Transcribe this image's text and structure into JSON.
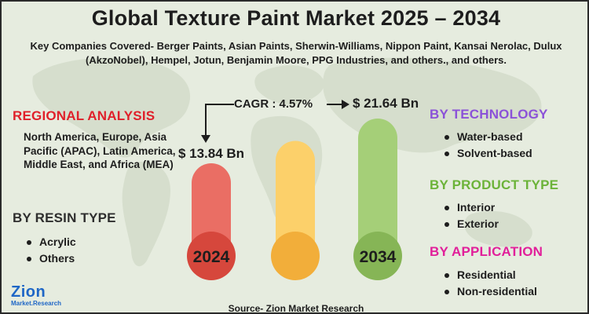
{
  "title": "Global Texture Paint Market 2025 – 2034",
  "companies": "Key Companies Covered- Berger Paints, Asian Paints, Sherwin-Williams, Nippon Paint, Kansai Nerolac, Dulux (AkzoNobel), Hempel, Jotun, Benjamin Moore, PPG Industries, and others., and others.",
  "regional": {
    "heading": "REGIONAL ANALYSIS",
    "text": "North America, Europe, Asia Pacific (APAC), Latin America, Middle East, and Africa (MEA)"
  },
  "resin": {
    "heading": "BY RESIN TYPE",
    "items": [
      "Acrylic",
      "Others"
    ]
  },
  "technology": {
    "heading": "BY TECHNOLOGY",
    "items": [
      "Water-based",
      "Solvent-based"
    ]
  },
  "product": {
    "heading": "BY PRODUCT TYPE",
    "items": [
      "Interior",
      "Exterior"
    ]
  },
  "application": {
    "heading": "BY APPLICATION",
    "items": [
      "Residential",
      "Non-residential"
    ]
  },
  "source": "Source- Zion Market Research",
  "logo": {
    "word": "Zion",
    "sub": "Market.Research"
  },
  "chart_data": {
    "type": "bar",
    "categories": [
      "2024",
      "",
      "2034"
    ],
    "values": [
      13.84,
      null,
      21.64
    ],
    "value_labels": [
      "$ 13.84 Bn",
      "",
      "$ 21.64 Bn"
    ],
    "cagr_label": "CAGR : 4.57%",
    "colors": {
      "bar_top": [
        "#ea6e64",
        "#fcd06a",
        "#a5cf78"
      ],
      "bar_circle": [
        "#d6473c",
        "#f2ae3a",
        "#86b556"
      ]
    }
  },
  "colors": {
    "regional": "#e0202a",
    "technology": "#8b52d8",
    "product": "#6cb339",
    "application": "#e11f9a",
    "logo": "#1e66c6"
  },
  "icons": [
    "arrow-down-icon",
    "arrow-right-icon",
    "world-map-background"
  ]
}
